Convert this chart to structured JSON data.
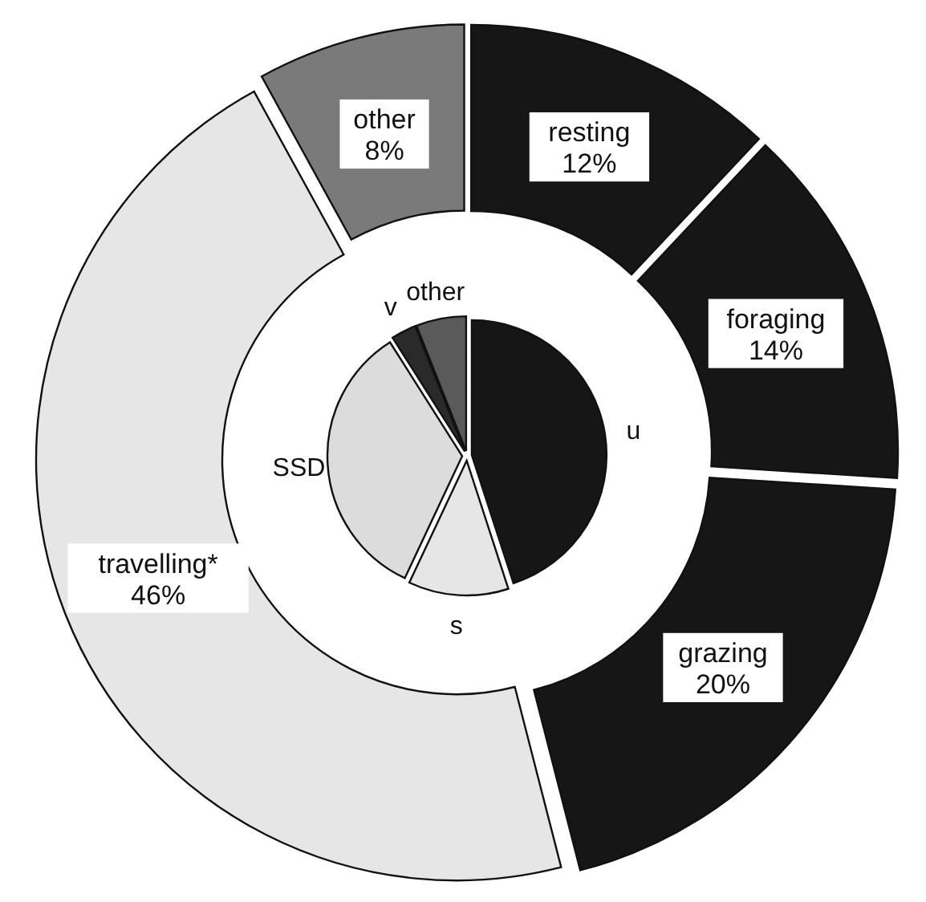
{
  "chart_data": [
    {
      "type": "donut",
      "categories": [
        "resting",
        "foraging",
        "grazing",
        "travelling*",
        "other"
      ],
      "values": [
        12,
        14,
        20,
        46,
        8
      ],
      "value_labels": [
        "12%",
        "14%",
        "20%",
        "46%",
        "8%"
      ],
      "colors": [
        "#161616",
        "#161616",
        "#161616",
        "#e6e6e6",
        "#7a7a7a"
      ]
    },
    {
      "type": "pie",
      "categories": [
        "u",
        "s",
        "SSD",
        "v",
        "other"
      ],
      "values": [
        45,
        12,
        34,
        3,
        6
      ],
      "colors": [
        "#161616",
        "#e6e6e6",
        "#dcdcdc",
        "#2a2a2a",
        "#5a5a5a"
      ]
    }
  ]
}
